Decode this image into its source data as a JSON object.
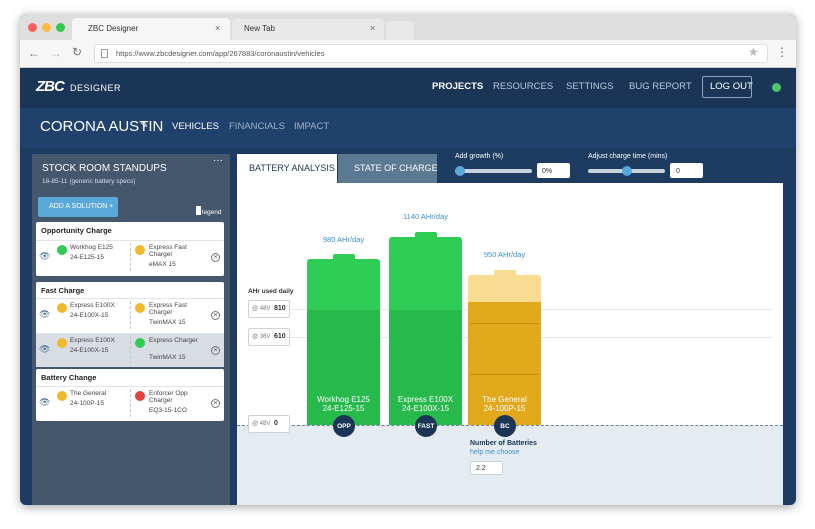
{
  "browser": {
    "tabs": [
      "ZBC Designer",
      "New Tab"
    ],
    "url": "https://www.zbcdesigner.com/app/267883/coronaustin/vehicles"
  },
  "nav": {
    "logo_mark": "ZBC",
    "logo_text": "DESIGNER",
    "items": [
      "PROJECTS",
      "RESOURCES",
      "SETTINGS",
      "BUG REPORT"
    ],
    "logout": "LOG OUT"
  },
  "project": {
    "name": "CORONA AUSTIN",
    "tabs": [
      "VEHICLES",
      "FINANCIALS",
      "IMPACT"
    ]
  },
  "sidebar": {
    "title": "STOCK ROOM STANDUPS",
    "subtitle": "18-85-11 (generic battery specs)",
    "add_button": "ADD A SOLUTION +",
    "legend": "legend",
    "groups": [
      {
        "title": "Opportunity Charge",
        "rows": [
          {
            "battery_name": "Workhog E125",
            "battery_model": "24-E125-15",
            "charger_name": "Express Fast Charger",
            "charger_model": "eMAX 15"
          }
        ]
      },
      {
        "title": "Fast Charge",
        "rows": [
          {
            "battery_name": "Express E100X",
            "battery_model": "24-E100X-15",
            "charger_name": "Express Fast Charger",
            "charger_model": "TwinMAX 15"
          },
          {
            "battery_name": "Express E100X",
            "battery_model": "24-E100X-15",
            "charger_name": "Express Charger",
            "charger_model": "TwinMAX 15"
          }
        ]
      },
      {
        "title": "Battery Change",
        "rows": [
          {
            "battery_name": "The General",
            "battery_model": "24-100P-15",
            "charger_name": "Enforcer Opp Charger",
            "charger_model": "EQ3-15-1CO"
          }
        ]
      }
    ]
  },
  "analysis": {
    "tabs": [
      "BATTERY ANALYSIS",
      "STATE OF CHARGE"
    ],
    "growth_label": "Add growth (%)",
    "growth_value": "0%",
    "charge_label": "Adjust charge time (mins)",
    "charge_value": "0",
    "ahr_title": "AHr used daily",
    "levels": [
      {
        "voltage": "@ 48V",
        "value": "810"
      },
      {
        "voltage": "@ 36V",
        "value": "610"
      },
      {
        "voltage": "@ 48V",
        "value": "0"
      }
    ],
    "batteries": [
      {
        "rate": "980 AHr/day",
        "name": "Workhog E125",
        "model": "24-E125-15",
        "badge": "OPP"
      },
      {
        "rate": "1140 AHr/day",
        "name": "Express E100X",
        "model": "24-E100X-15",
        "badge": "FAST"
      },
      {
        "rate": "950 AHr/day",
        "name": "The General",
        "model": "24-100P-15",
        "badge": "BC"
      }
    ],
    "count_title": "Number of Batteries",
    "help": "help me choose",
    "count": "2.2"
  }
}
